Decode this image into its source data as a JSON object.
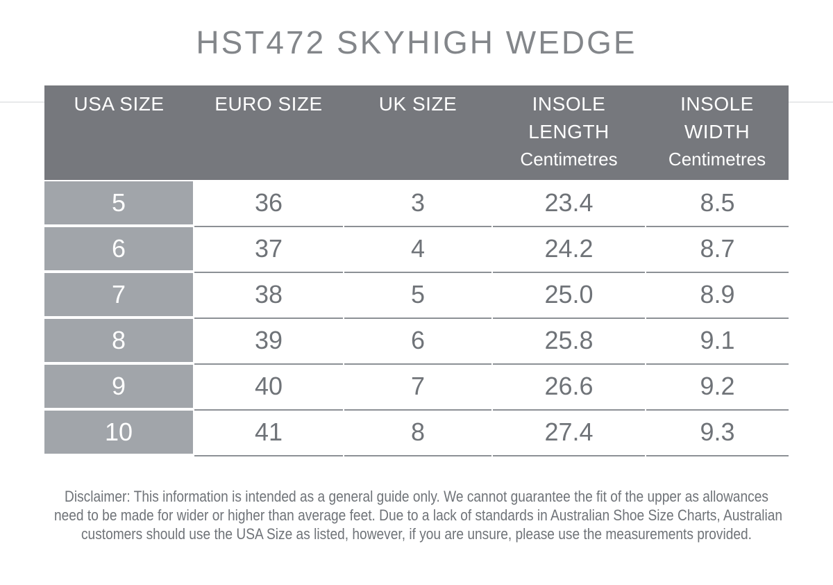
{
  "page": {
    "title": "HST472 SKYHIGH WEDGE"
  },
  "colors": {
    "header_bg": "#76787d",
    "row_label_bg": "#a1a5aa",
    "body_text": "#6f7378",
    "separator_line": "#8c9095",
    "title_text": "#83868a",
    "header_text": "#ffffff"
  },
  "table": {
    "columns": [
      {
        "label": "USA SIZE",
        "label2": "",
        "unit": ""
      },
      {
        "label": "EURO SIZE",
        "label2": "",
        "unit": ""
      },
      {
        "label": "UK SIZE",
        "label2": "",
        "unit": ""
      },
      {
        "label": "INSOLE",
        "label2": "LENGTH",
        "unit": "Centimetres"
      },
      {
        "label": "INSOLE",
        "label2": "WIDTH",
        "unit": "Centimetres"
      }
    ],
    "rows": [
      [
        "5",
        "36",
        "3",
        "23.4",
        "8.5"
      ],
      [
        "6",
        "37",
        "4",
        "24.2",
        "8.7"
      ],
      [
        "7",
        "38",
        "5",
        "25.0",
        "8.9"
      ],
      [
        "8",
        "39",
        "6",
        "25.8",
        "9.1"
      ],
      [
        "9",
        "40",
        "7",
        "26.6",
        "9.2"
      ],
      [
        "10",
        "41",
        "8",
        "27.4",
        "9.3"
      ]
    ]
  },
  "disclaimer": {
    "lines": [
      "Disclaimer: This information is intended as a general guide only. We cannot guarantee the fit of the upper as allowances",
      "need to be made for wider or higher than average feet. Due to a lack of standards in Australian Shoe Size Charts, Australian",
      "customers should use the USA Size as listed, however, if you are unsure, please use the measurements provided."
    ]
  },
  "chart_data": {
    "type": "table",
    "title": "HST472 SKYHIGH WEDGE",
    "columns": [
      "USA SIZE",
      "EURO SIZE",
      "UK SIZE",
      "INSOLE LENGTH Centimetres",
      "INSOLE WIDTH Centimetres"
    ],
    "rows": [
      [
        5,
        36,
        3,
        23.4,
        8.5
      ],
      [
        6,
        37,
        4,
        24.2,
        8.7
      ],
      [
        7,
        38,
        5,
        25.0,
        8.9
      ],
      [
        8,
        39,
        6,
        25.8,
        9.1
      ],
      [
        9,
        40,
        7,
        26.6,
        9.2
      ],
      [
        10,
        41,
        8,
        27.4,
        9.3
      ]
    ]
  }
}
